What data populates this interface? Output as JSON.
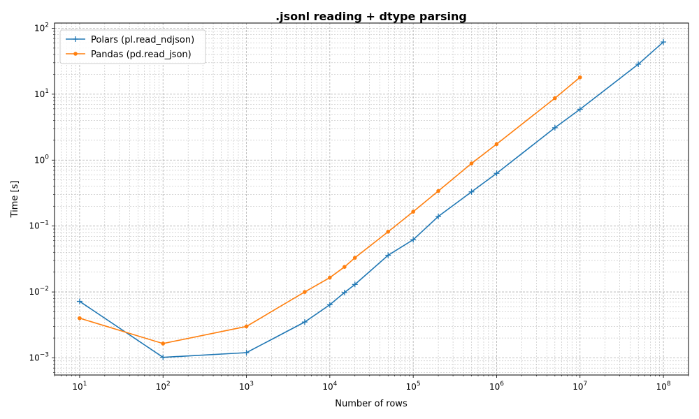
{
  "chart_data": {
    "type": "line",
    "title": ".jsonl reading + dtype parsing",
    "xlabel": "Number of rows",
    "ylabel": "Time [s]",
    "xscale": "log",
    "yscale": "log",
    "xlim": [
      5,
      200000000
    ],
    "ylim": [
      0.00055,
      120
    ],
    "grid": true,
    "legend_position": "top-left",
    "x_ticks": [
      {
        "value": 10,
        "base": "10",
        "exp": "1"
      },
      {
        "value": 100,
        "base": "10",
        "exp": "2"
      },
      {
        "value": 1000,
        "base": "10",
        "exp": "3"
      },
      {
        "value": 10000,
        "base": "10",
        "exp": "4"
      },
      {
        "value": 100000,
        "base": "10",
        "exp": "5"
      },
      {
        "value": 1000000,
        "base": "10",
        "exp": "6"
      },
      {
        "value": 10000000,
        "base": "10",
        "exp": "7"
      },
      {
        "value": 100000000,
        "base": "10",
        "exp": "8"
      }
    ],
    "y_ticks": [
      {
        "value": 0.001,
        "base": "10",
        "exp": "−3"
      },
      {
        "value": 0.01,
        "base": "10",
        "exp": "−2"
      },
      {
        "value": 0.1,
        "base": "10",
        "exp": "−1"
      },
      {
        "value": 1,
        "base": "10",
        "exp": "0"
      },
      {
        "value": 10,
        "base": "10",
        "exp": "1"
      },
      {
        "value": 100,
        "base": "10",
        "exp": "2"
      }
    ],
    "series": [
      {
        "name": "Polars (pl.read_ndjson)",
        "color": "#1f77b4",
        "marker": "plus",
        "x": [
          10,
          100,
          1000,
          5000,
          10000,
          15000,
          20000,
          50000,
          100000,
          200000,
          500000,
          1000000,
          5000000,
          10000000,
          50000000,
          100000000
        ],
        "y": [
          0.0072,
          0.00102,
          0.0012,
          0.0035,
          0.0064,
          0.0098,
          0.013,
          0.036,
          0.062,
          0.14,
          0.33,
          0.63,
          3.1,
          5.9,
          28.5,
          62
        ]
      },
      {
        "name": "Pandas (pd.read_json)",
        "color": "#ff7f0e",
        "marker": "dot",
        "x": [
          10,
          100,
          1000,
          5000,
          10000,
          15000,
          20000,
          50000,
          100000,
          200000,
          500000,
          1000000,
          5000000,
          10000000
        ],
        "y": [
          0.004,
          0.00165,
          0.003,
          0.01,
          0.0165,
          0.024,
          0.033,
          0.082,
          0.165,
          0.34,
          0.89,
          1.75,
          8.7,
          18
        ]
      }
    ]
  }
}
